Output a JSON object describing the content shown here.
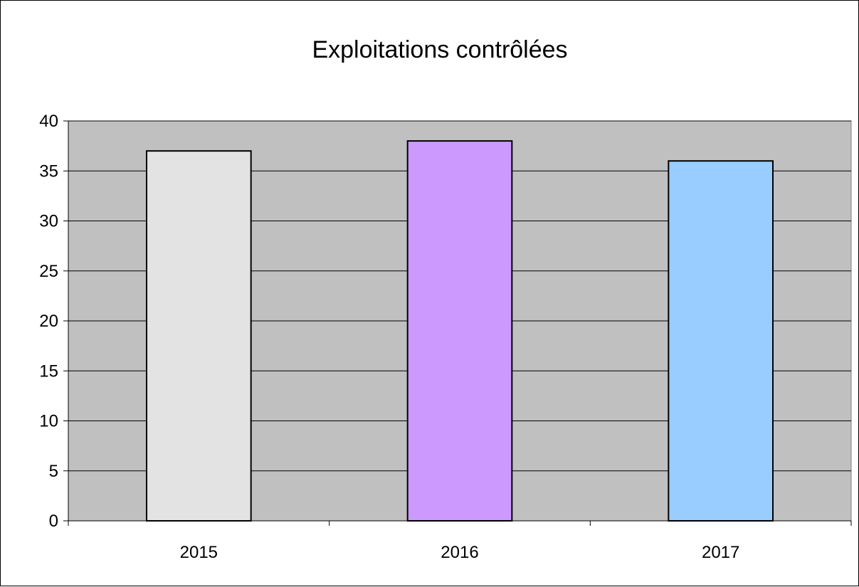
{
  "chart_data": {
    "type": "bar",
    "title": "Exploitations contrôlées",
    "xlabel": "",
    "ylabel": "",
    "categories": [
      "2015",
      "2016",
      "2017"
    ],
    "values": [
      37,
      38,
      36
    ],
    "bar_colors": [
      "#e3e3e3",
      "#cc99ff",
      "#99ccff"
    ],
    "plot_background": "#c0c0c0",
    "ylim": [
      0,
      40
    ],
    "yticks": [
      0,
      5,
      10,
      15,
      20,
      25,
      30,
      35,
      40
    ],
    "grid": true,
    "legend": "none"
  }
}
